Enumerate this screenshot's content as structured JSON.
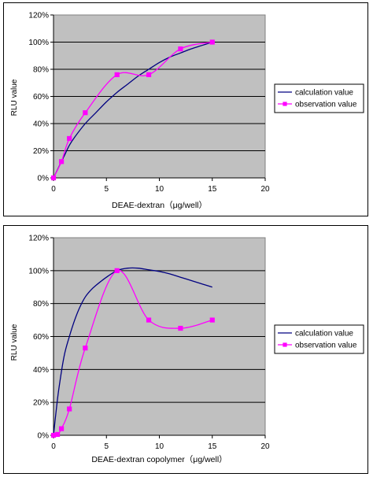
{
  "chart_data": [
    {
      "type": "line",
      "xlabel": "DEAE-dextran（μg/well）",
      "ylabel": "RLU value",
      "xlim": [
        0,
        20
      ],
      "ylim": [
        0,
        120
      ],
      "x_ticks": [
        "0",
        "5",
        "10",
        "15",
        "20"
      ],
      "y_ticks": [
        "0%",
        "20%",
        "40%",
        "60%",
        "80%",
        "100%",
        "120%"
      ],
      "y_unit": "%",
      "grid": true,
      "legend_position": "right",
      "series": [
        {
          "name": "calculation value",
          "color": "#000080",
          "marker": "none",
          "x": [
            0,
            0.5,
            1,
            1.5,
            2,
            3,
            4,
            5,
            6,
            7,
            8,
            9,
            10,
            11,
            12,
            13,
            14,
            15
          ],
          "y": [
            0,
            8,
            16,
            24,
            30,
            40,
            48,
            56,
            63,
            69,
            75,
            80,
            85,
            89,
            92,
            95,
            97.5,
            100
          ]
        },
        {
          "name": "observation value",
          "color": "#ff00ff",
          "marker": "square",
          "x": [
            0,
            0.75,
            1.5,
            3,
            6,
            9,
            12,
            15
          ],
          "y": [
            0,
            12,
            29,
            48,
            76,
            76,
            95,
            100
          ]
        }
      ]
    },
    {
      "type": "line",
      "xlabel": "DEAE-dextran copolymer（μg/well）",
      "ylabel": "RLU value",
      "xlim": [
        0,
        20
      ],
      "ylim": [
        0,
        120
      ],
      "x_ticks": [
        "0",
        "5",
        "10",
        "15",
        "20"
      ],
      "y_ticks": [
        "0%",
        "20%",
        "40%",
        "60%",
        "80%",
        "100%",
        "120%"
      ],
      "y_unit": "%",
      "grid": true,
      "legend_position": "right",
      "series": [
        {
          "name": "calculation value",
          "color": "#000080",
          "marker": "none",
          "x": [
            0,
            0.2,
            0.5,
            1,
            1.5,
            2,
            2.5,
            3,
            3.5,
            4,
            5,
            6,
            7,
            8,
            9,
            10,
            11,
            12,
            13,
            14,
            15
          ],
          "y": [
            0,
            12,
            28,
            48,
            60,
            70,
            78,
            84,
            88,
            91,
            96,
            100,
            101.5,
            101.5,
            100.5,
            99.5,
            98,
            96,
            94,
            92,
            90
          ]
        },
        {
          "name": "observation value",
          "color": "#ff00ff",
          "marker": "square",
          "x": [
            0,
            0.375,
            0.75,
            1.5,
            3,
            6,
            9,
            12,
            15
          ],
          "y": [
            0,
            0.5,
            4,
            16,
            53,
            100,
            70,
            65,
            70
          ]
        }
      ]
    }
  ]
}
